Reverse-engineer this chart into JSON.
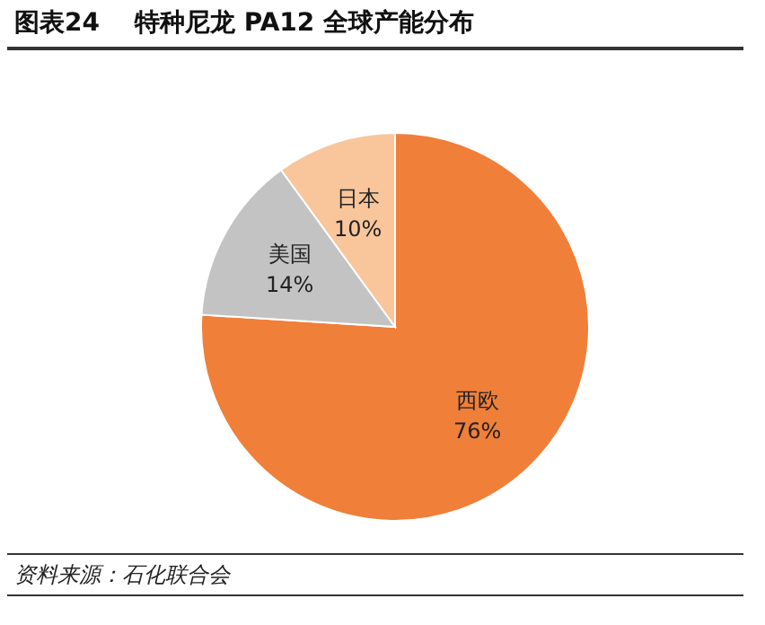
{
  "chart_data": {
    "type": "pie",
    "title": "图表24    特种尼龙 PA12 全球产能分布",
    "categories": [
      "西欧",
      "美国",
      "日本"
    ],
    "values": [
      76,
      14,
      10
    ],
    "value_labels": [
      "76%",
      "14%",
      "10%"
    ],
    "colors": [
      "#ef7f39",
      "#c3c3c3",
      "#f9c59b"
    ],
    "annotations": [
      "资料来源：石化联合会"
    ]
  }
}
